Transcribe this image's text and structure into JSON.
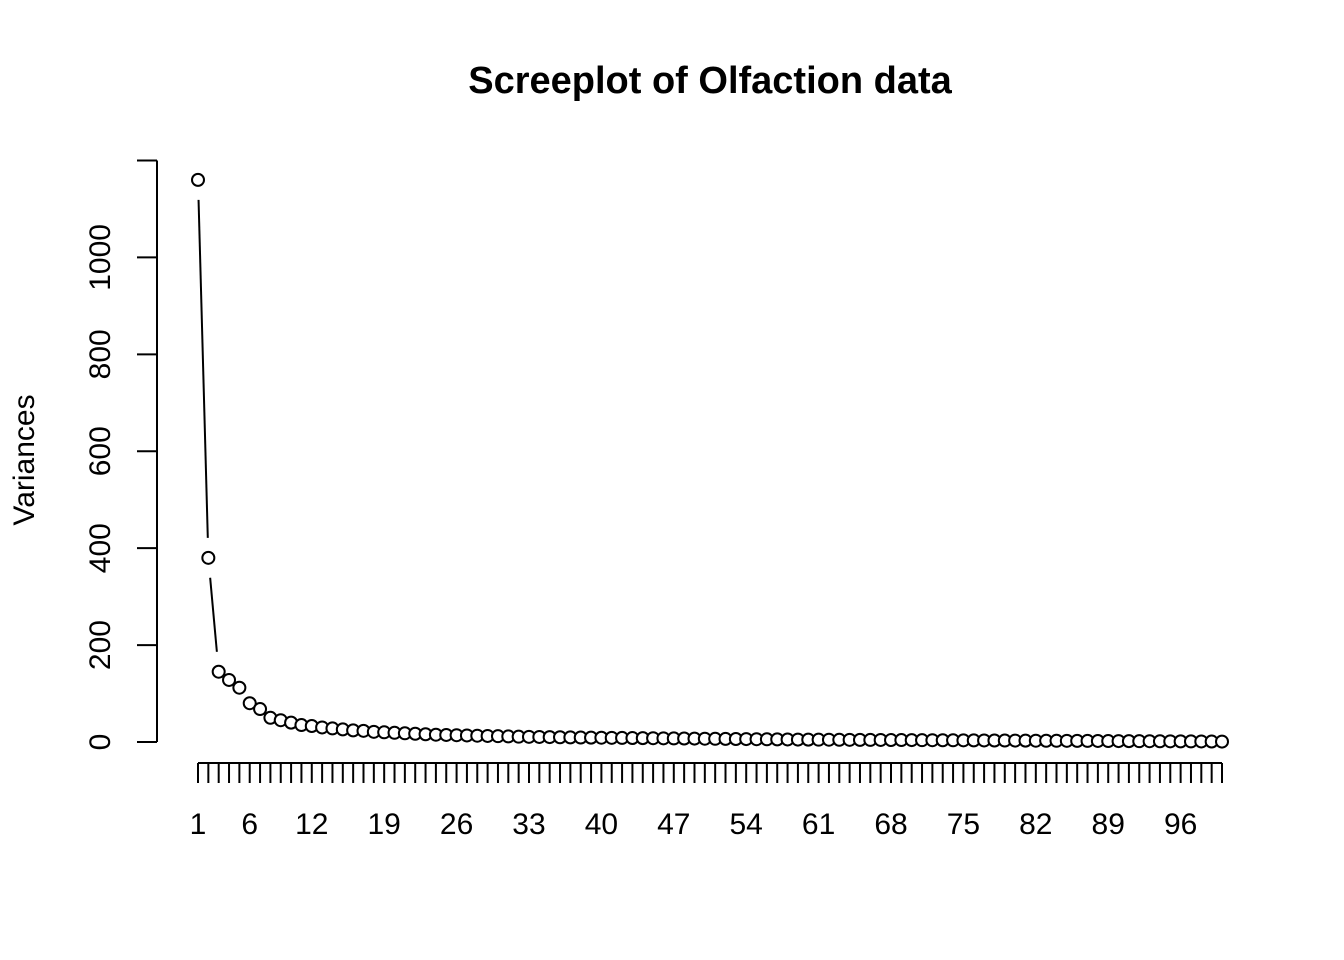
{
  "chart_data": {
    "type": "line",
    "title": "Screeplot of Olfaction data",
    "xlabel": "",
    "ylabel": "Variances",
    "x": [
      1,
      2,
      3,
      4,
      5,
      6,
      7,
      8,
      9,
      10,
      11,
      12,
      13,
      14,
      15,
      16,
      17,
      18,
      19,
      20,
      21,
      22,
      23,
      24,
      25,
      26,
      27,
      28,
      29,
      30,
      31,
      32,
      33,
      34,
      35,
      36,
      37,
      38,
      39,
      40,
      41,
      42,
      43,
      44,
      45,
      46,
      47,
      48,
      49,
      50,
      51,
      52,
      53,
      54,
      55,
      56,
      57,
      58,
      59,
      60,
      61,
      62,
      63,
      64,
      65,
      66,
      67,
      68,
      69,
      70,
      71,
      72,
      73,
      74,
      75,
      76,
      77,
      78,
      79,
      80,
      81,
      82,
      83,
      84,
      85,
      86,
      87,
      88,
      89,
      90,
      91,
      92,
      93,
      94,
      95,
      96,
      97,
      98,
      99,
      100
    ],
    "values": [
      1160,
      380,
      145,
      128,
      112,
      80,
      68,
      50,
      45,
      40,
      35,
      33,
      30,
      28,
      26,
      24,
      23,
      21,
      20,
      19,
      18,
      17,
      16,
      15,
      14.5,
      14,
      13.5,
      13,
      12.5,
      12,
      11.5,
      11,
      10.7,
      10.4,
      10.1,
      9.8,
      9.5,
      9.2,
      9,
      8.8,
      8.6,
      8.4,
      8.2,
      8,
      7.8,
      7.6,
      7.4,
      7.2,
      7,
      6.8,
      6.6,
      6.4,
      6.2,
      6,
      5.8,
      5.6,
      5.4,
      5.2,
      5,
      4.9,
      4.8,
      4.7,
      4.6,
      4.5,
      4.4,
      4.3,
      4.2,
      4.1,
      4,
      3.9,
      3.8,
      3.7,
      3.6,
      3.5,
      3.4,
      3.3,
      3.2,
      3.1,
      3,
      2.9,
      2.8,
      2.7,
      2.6,
      2.5,
      2.4,
      2.3,
      2.2,
      2.1,
      2,
      1.9,
      1.8,
      1.7,
      1.6,
      1.5,
      1.4,
      1.3,
      1.2,
      1.1,
      1,
      0.9
    ],
    "line_through_points": [
      1,
      2,
      3
    ],
    "xlim": [
      1,
      100
    ],
    "ylim": [
      0,
      1160
    ],
    "xticks": [
      1,
      2,
      3,
      4,
      5,
      6,
      7,
      8,
      9,
      10,
      11,
      12,
      13,
      14,
      15,
      16,
      17,
      18,
      19,
      20,
      21,
      22,
      23,
      24,
      25,
      26,
      27,
      28,
      29,
      30,
      31,
      32,
      33,
      34,
      35,
      36,
      37,
      38,
      39,
      40,
      41,
      42,
      43,
      44,
      45,
      46,
      47,
      48,
      49,
      50,
      51,
      52,
      53,
      54,
      55,
      56,
      57,
      58,
      59,
      60,
      61,
      62,
      63,
      64,
      65,
      66,
      67,
      68,
      69,
      70,
      71,
      72,
      73,
      74,
      75,
      76,
      77,
      78,
      79,
      80,
      81,
      82,
      83,
      84,
      85,
      86,
      87,
      88,
      89,
      90,
      91,
      92,
      93,
      94,
      95,
      96,
      97,
      98,
      99,
      100
    ],
    "xtick_labels": [
      "1",
      "6",
      "12",
      "19",
      "26",
      "33",
      "40",
      "47",
      "54",
      "61",
      "68",
      "75",
      "82",
      "89",
      "96"
    ],
    "yticks": [
      0,
      200,
      400,
      600,
      800,
      1000
    ],
    "ytick_labels": [
      "0",
      "200",
      "400",
      "600",
      "800",
      "1000"
    ],
    "ytick_upper_end": 1200,
    "grid": false,
    "legend": "none",
    "marker": "open-circle",
    "colors": {
      "background": "#ffffff",
      "foreground": "#000000"
    }
  }
}
